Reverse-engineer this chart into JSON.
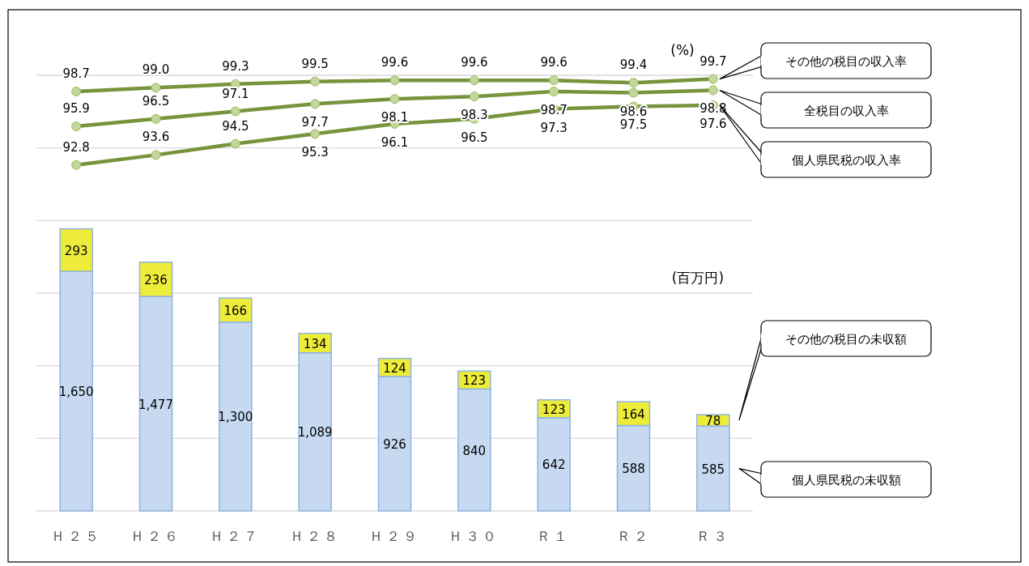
{
  "chart_data": {
    "type": "bar",
    "stacked": true,
    "ylabel": "(百万円)",
    "y2label": "(%)",
    "categories": [
      "Ｈ２５",
      "Ｈ２６",
      "Ｈ２７",
      "Ｈ２８",
      "Ｈ２９",
      "Ｈ３０",
      "Ｒ１",
      "Ｒ２",
      "Ｒ３"
    ],
    "series": [
      {
        "name": "個人県民税の未収額",
        "color": "#c6d9f0",
        "values": [
          1650,
          1477,
          1300,
          1089,
          926,
          840,
          642,
          588,
          585
        ],
        "value_labels": [
          "1,650",
          "1,477",
          "1,300",
          "1,089",
          "926",
          "840",
          "642",
          "588",
          "585"
        ]
      },
      {
        "name": "その他の税目の未収額",
        "color": "#eeec3a",
        "values": [
          293,
          236,
          166,
          134,
          124,
          123,
          123,
          164,
          78
        ],
        "value_labels": [
          "293",
          "236",
          "166",
          "134",
          "124",
          "123",
          "123",
          "164",
          "78"
        ]
      },
      {
        "name": "その他の税目の収入率",
        "type": "line",
        "axis": "y2",
        "color": "#77933c",
        "values": [
          98.7,
          99.0,
          99.3,
          99.5,
          99.6,
          99.6,
          99.6,
          99.4,
          99.7
        ],
        "value_labels": [
          "98.7",
          "99.0",
          "99.3",
          "99.5",
          "99.6",
          "99.6",
          "99.6",
          "99.4",
          "99.7"
        ]
      },
      {
        "name": "全税目の収入率",
        "type": "line",
        "axis": "y2",
        "color": "#77933c",
        "values": [
          95.9,
          96.5,
          97.1,
          97.7,
          98.1,
          98.3,
          98.7,
          98.6,
          98.8
        ],
        "value_labels": [
          "95.9",
          "96.5",
          "97.1",
          "97.7",
          "98.1",
          "98.3",
          "98.7",
          "98.6",
          "98.8"
        ]
      },
      {
        "name": "個人県民税の収入率",
        "type": "line",
        "axis": "y2",
        "color": "#77933c",
        "values": [
          92.8,
          93.6,
          94.5,
          95.3,
          96.1,
          96.5,
          97.3,
          97.5,
          97.6
        ],
        "value_labels": [
          "92.8",
          "93.6",
          "94.5",
          "95.3",
          "96.1",
          "96.5",
          "97.3",
          "97.5",
          "97.6"
        ]
      }
    ],
    "ylim": [
      0,
      3000
    ],
    "yticks": [
      {
        "value": 0,
        "label": null
      },
      {
        "value": 500,
        "label": null
      },
      {
        "value": 1000,
        "label": null
      },
      {
        "value": 1500,
        "label": null
      },
      {
        "value": 2000,
        "label": null
      },
      {
        "value": 2500,
        "label": null
      },
      {
        "value": 3000,
        "label": null
      }
    ],
    "y2lim": [
      65,
      100
    ],
    "grid": "y",
    "marker": "circle",
    "line_style": "solid",
    "legend": false,
    "tick_labels": "x"
  }
}
